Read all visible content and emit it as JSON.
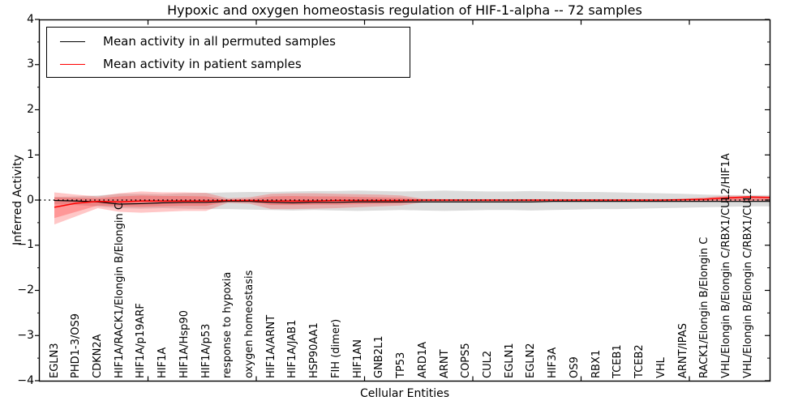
{
  "chart_data": {
    "type": "line",
    "title": "Hypoxic and oxygen homeostasis regulation of HIF-1-alpha -- 72 samples",
    "xlabel": "Cellular Entities",
    "ylabel": "Inferred Activity",
    "ylim": [
      -4,
      4
    ],
    "ytick_labels": [
      "4",
      "3",
      "2",
      "1",
      "0",
      "−1",
      "−2",
      "−3",
      "−4"
    ],
    "ytick_values": [
      4,
      3,
      2,
      1,
      0,
      -1,
      -2,
      -3,
      -4
    ],
    "grid": false,
    "legend_position": "upper-left",
    "reference_line_y": 0,
    "categories": [
      "EGLN3",
      "PHD1-3/OS9",
      "CDKN2A",
      "HIF1A/RACK1/Elongin B/Elongin C",
      "HIF1A/p19ARF",
      "HIF1A",
      "HIF1A/Hsp90",
      "HIF1A/p53",
      "response to hypoxia",
      "oxygen homeostasis",
      "HIF1A/ARNT",
      "HIF1A/JAB1",
      "HSP90AA1",
      "FIH (dimer)",
      "HIF1AN",
      "GNB2L1",
      "TP53",
      "ARD1A",
      "ARNT",
      "COPS5",
      "CUL2",
      "EGLN1",
      "EGLN2",
      "HIF3A",
      "OS9",
      "RBX1",
      "TCEB1",
      "TCEB2",
      "VHL",
      "ARNT/IPAS",
      "RACK1/Elongin B/Elongin C",
      "VHL/Elongin B/Elongin C/RBX1/CUL2/HIF1A",
      "VHL/Elongin B/Elongin C/RBX1/CUL2",
      ""
    ],
    "legend": [
      {
        "label": "Mean activity in all permuted samples",
        "color": "#000000"
      },
      {
        "label": "Mean activity in patient samples",
        "color": "#ff0000"
      }
    ],
    "series": [
      {
        "name": "Mean activity in all permuted samples",
        "type": "line",
        "color": "#000000",
        "values": [
          -0.01,
          -0.02,
          -0.04,
          -0.09,
          -0.08,
          -0.06,
          -0.05,
          -0.05,
          -0.03,
          -0.03,
          -0.05,
          -0.06,
          -0.05,
          -0.05,
          -0.04,
          -0.04,
          -0.04,
          -0.04,
          -0.04,
          -0.04,
          -0.04,
          -0.04,
          -0.04,
          -0.03,
          -0.03,
          -0.03,
          -0.03,
          -0.03,
          -0.03,
          -0.03,
          -0.03,
          -0.03,
          -0.03,
          -0.03
        ]
      },
      {
        "name": "Mean activity in patient samples",
        "type": "line",
        "color": "#ff0000",
        "values": [
          -0.16,
          -0.07,
          -0.03,
          -0.04,
          -0.02,
          -0.02,
          -0.02,
          -0.02,
          -0.01,
          -0.01,
          -0.02,
          -0.02,
          -0.02,
          -0.01,
          -0.01,
          -0.01,
          -0.01,
          0.0,
          0.0,
          0.0,
          0.0,
          0.0,
          0.0,
          0.0,
          0.0,
          0.0,
          0.0,
          0.0,
          0.0,
          0.01,
          0.02,
          0.05,
          0.07,
          0.06
        ]
      },
      {
        "name": "Permuted samples activity range",
        "type": "band",
        "color": "rgba(128,128,128,0.28)",
        "upper": [
          0.07,
          0.08,
          0.1,
          0.14,
          0.14,
          0.13,
          0.15,
          0.16,
          0.17,
          0.18,
          0.18,
          0.19,
          0.2,
          0.2,
          0.21,
          0.2,
          0.19,
          0.2,
          0.21,
          0.2,
          0.19,
          0.19,
          0.2,
          0.19,
          0.18,
          0.18,
          0.17,
          0.16,
          0.15,
          0.14,
          0.12,
          0.11,
          0.11,
          0.11
        ],
        "lower": [
          -0.09,
          -0.11,
          -0.14,
          -0.18,
          -0.19,
          -0.18,
          -0.19,
          -0.2,
          -0.2,
          -0.21,
          -0.22,
          -0.23,
          -0.22,
          -0.23,
          -0.24,
          -0.23,
          -0.22,
          -0.23,
          -0.24,
          -0.23,
          -0.22,
          -0.22,
          -0.23,
          -0.22,
          -0.21,
          -0.2,
          -0.2,
          -0.19,
          -0.18,
          -0.17,
          -0.16,
          -0.15,
          -0.14,
          -0.14
        ]
      },
      {
        "name": "Patient samples activity range (outer)",
        "type": "band",
        "color": "rgba(255,40,40,0.26)",
        "upper": [
          0.17,
          0.12,
          0.08,
          0.15,
          0.19,
          0.17,
          0.17,
          0.16,
          0.04,
          0.06,
          0.14,
          0.15,
          0.15,
          0.14,
          0.13,
          0.12,
          0.1,
          0.03,
          0.02,
          0.02,
          0.02,
          0.02,
          0.02,
          0.02,
          0.02,
          0.02,
          0.02,
          0.02,
          0.02,
          0.03,
          0.06,
          0.1,
          0.09,
          0.08
        ],
        "lower": [
          -0.54,
          -0.36,
          -0.18,
          -0.26,
          -0.28,
          -0.26,
          -0.24,
          -0.24,
          -0.06,
          -0.08,
          -0.2,
          -0.2,
          -0.19,
          -0.18,
          -0.16,
          -0.14,
          -0.12,
          -0.05,
          -0.03,
          -0.03,
          -0.03,
          -0.03,
          -0.03,
          -0.03,
          -0.03,
          -0.03,
          -0.03,
          -0.03,
          -0.03,
          -0.03,
          -0.03,
          -0.03,
          -0.03,
          -0.03
        ]
      },
      {
        "name": "Patient samples activity range (inner)",
        "type": "band",
        "color": "rgba(255,40,40,0.30)",
        "upper": [
          0.06,
          0.05,
          0.04,
          0.08,
          0.1,
          0.09,
          0.09,
          0.08,
          0.01,
          0.02,
          0.08,
          0.09,
          0.08,
          0.08,
          0.07,
          0.06,
          0.05,
          0.01,
          0.01,
          0.01,
          0.01,
          0.01,
          0.01,
          0.01,
          0.01,
          0.01,
          0.01,
          0.01,
          0.01,
          0.01,
          0.03,
          0.06,
          0.06,
          0.05
        ],
        "lower": [
          -0.4,
          -0.26,
          -0.12,
          -0.14,
          -0.15,
          -0.14,
          -0.13,
          -0.13,
          -0.03,
          -0.04,
          -0.11,
          -0.11,
          -0.1,
          -0.1,
          -0.09,
          -0.08,
          -0.07,
          -0.02,
          -0.02,
          -0.02,
          -0.02,
          -0.02,
          -0.02,
          -0.02,
          -0.02,
          -0.02,
          -0.02,
          -0.02,
          -0.02,
          -0.02,
          -0.02,
          -0.01,
          -0.01,
          -0.01
        ]
      }
    ]
  }
}
